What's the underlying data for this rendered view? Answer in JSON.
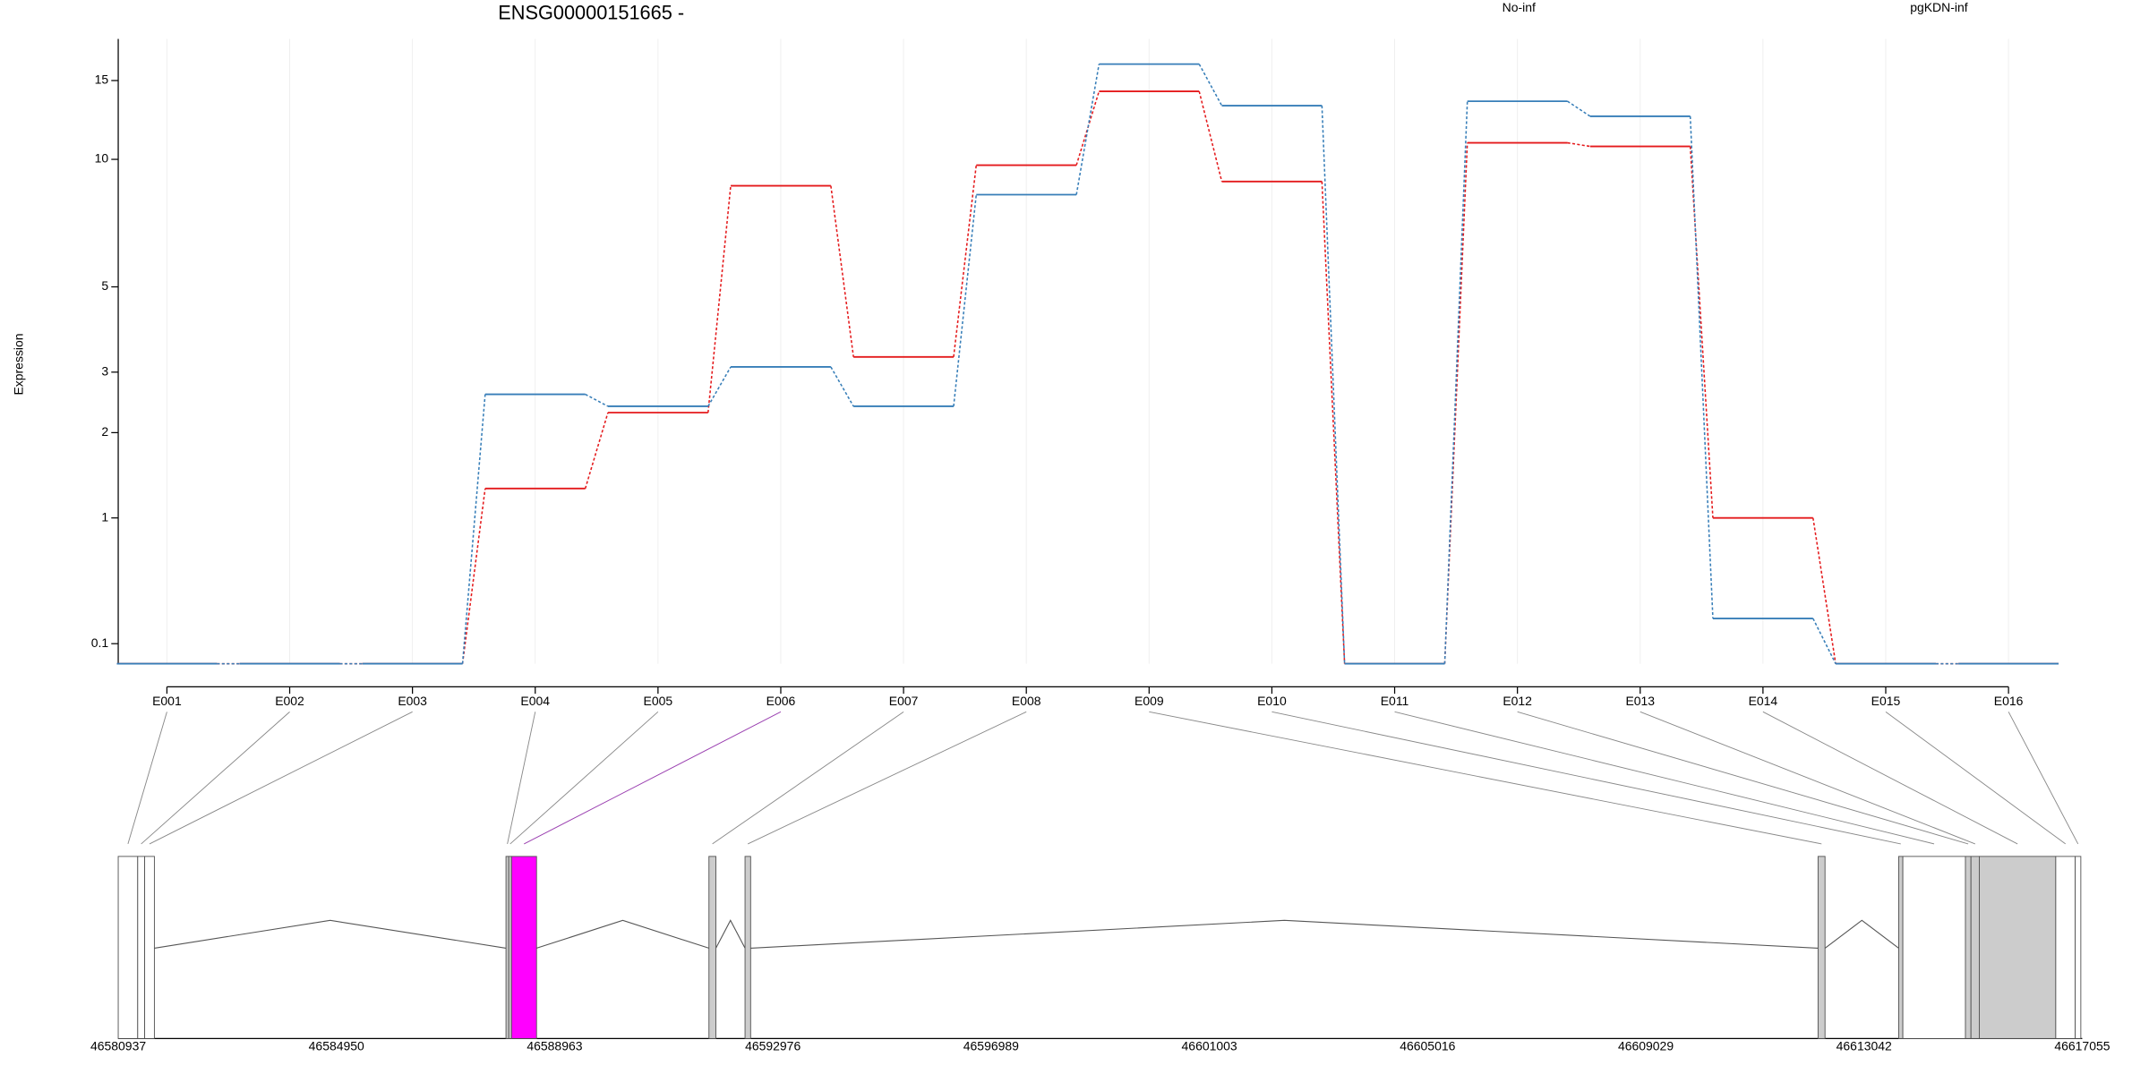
{
  "chart_data": [
    {
      "type": "line",
      "title": "ENSG00000151665 -",
      "y_label": "Expression",
      "yscale": "log1p",
      "grid": true,
      "categories": [
        "E001",
        "E002",
        "E003",
        "E004",
        "E005",
        "E006",
        "E007",
        "E008",
        "E009",
        "E010",
        "E011",
        "E012",
        "E013",
        "E014",
        "E015",
        "E016"
      ],
      "series": [
        {
          "name": "No-inf",
          "color": "#e41a1c",
          "values": [
            0,
            0,
            0,
            1.3,
            2.3,
            8.7,
            3.3,
            9.7,
            14.2,
            8.9,
            0,
            10.9,
            10.7,
            1.0,
            0,
            0
          ]
        },
        {
          "name": "pgKDN-inf",
          "color": "#377eb8",
          "values": [
            0,
            0,
            0,
            2.6,
            2.4,
            3.1,
            2.4,
            8.3,
            16.3,
            13.2,
            0,
            13.5,
            12.5,
            0.24,
            0,
            0
          ]
        }
      ],
      "ylim": [
        0,
        18.5
      ],
      "yticks": [
        0.1,
        1,
        2,
        3,
        5,
        10,
        15
      ]
    },
    {
      "type": "gene-model",
      "xlim": [
        46580937,
        46617055
      ],
      "xticks": [
        46580937,
        46584950,
        46588963,
        46592976,
        46596989,
        46601003,
        46605016,
        46609029,
        46613042,
        46617055
      ],
      "exons": [
        {
          "start": 46580937,
          "end": 46581295,
          "color": "#ffffff",
          "link_color": "#888888"
        },
        {
          "start": 46581295,
          "end": 46581423,
          "color": "#ffffff",
          "link_color": "#888888"
        },
        {
          "start": 46581423,
          "end": 46581602,
          "color": "#ffffff",
          "link_color": "#888888"
        },
        {
          "start": 46588068,
          "end": 46588119,
          "color": "#cccccc",
          "link_color": "#888888"
        },
        {
          "start": 46588119,
          "end": 46588170,
          "color": "#cccccc",
          "link_color": "#888888"
        },
        {
          "start": 46588170,
          "end": 46588630,
          "color": "#ff00ff",
          "link_color": "#9a3fb0"
        },
        {
          "start": 46591800,
          "end": 46591928,
          "color": "#cccccc",
          "link_color": "#888888"
        },
        {
          "start": 46592464,
          "end": 46592567,
          "color": "#cccccc",
          "link_color": "#888888"
        },
        {
          "start": 46612197,
          "end": 46612325,
          "color": "#cccccc",
          "link_color": "#888888"
        },
        {
          "start": 46613680,
          "end": 46613756,
          "color": "#cccccc",
          "link_color": "#888888"
        },
        {
          "start": 46613756,
          "end": 46614907,
          "color": "#ffffff",
          "link_color": "#888888"
        },
        {
          "start": 46614907,
          "end": 46615009,
          "color": "#cccccc",
          "link_color": "#888888"
        },
        {
          "start": 46615009,
          "end": 46615162,
          "color": "#cccccc",
          "link_color": "#888888"
        },
        {
          "start": 46615162,
          "end": 46616568,
          "color": "#cccccc",
          "link_color": "#888888"
        },
        {
          "start": 46616568,
          "end": 46616926,
          "color": "#ffffff",
          "link_color": "#888888"
        },
        {
          "start": 46616926,
          "end": 46617029,
          "color": "#ffffff",
          "link_color": "#888888"
        }
      ]
    }
  ]
}
